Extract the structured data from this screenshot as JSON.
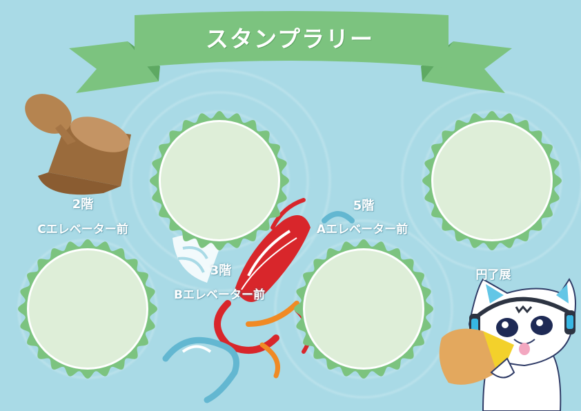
{
  "title": "スタンプラリー",
  "stations": [
    {
      "floor": "2階",
      "location": "Cエレベーター前"
    },
    {
      "floor": "3階",
      "location": "Bエレベーター前"
    },
    {
      "floor": "5階",
      "location": "Aエレベーター前"
    },
    {
      "floor": "",
      "location": "円了展"
    }
  ],
  "colors": {
    "background": "#a9dae6",
    "banner": "#7cc37f",
    "stamp_frame": "#7cc37f",
    "stamp_slot": "#deeed8",
    "stamp_tool": "#b58450"
  },
  "icons": [
    "stamp-tool-icon",
    "mascot-cat-icon",
    "decorative-fish-icon",
    "decorative-wave-icon"
  ]
}
